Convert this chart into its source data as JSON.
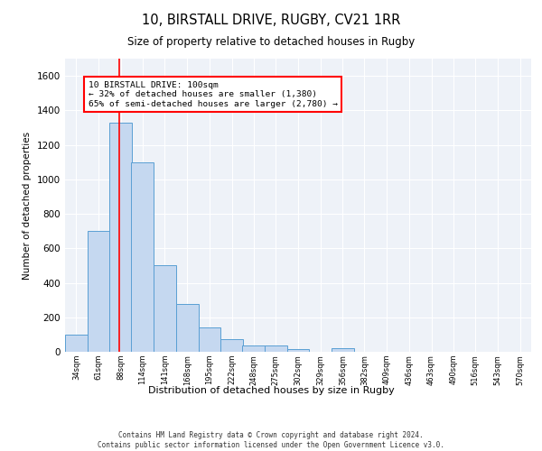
{
  "title": "10, BIRSTALL DRIVE, RUGBY, CV21 1RR",
  "subtitle": "Size of property relative to detached houses in Rugby",
  "xlabel": "Distribution of detached houses by size in Rugby",
  "ylabel": "Number of detached properties",
  "bar_color": "#c5d8f0",
  "bar_edge_color": "#5a9fd4",
  "bins": [
    34,
    61,
    88,
    114,
    141,
    168,
    195,
    222,
    248,
    275,
    302,
    329,
    356,
    382,
    409,
    436,
    463,
    490,
    516,
    543,
    570
  ],
  "values": [
    100,
    700,
    1330,
    1100,
    500,
    275,
    140,
    75,
    35,
    35,
    15,
    0,
    20,
    0,
    0,
    0,
    0,
    0,
    0,
    0
  ],
  "red_line_x": 100,
  "annotation_text": "10 BIRSTALL DRIVE: 100sqm\n← 32% of detached houses are smaller (1,380)\n65% of semi-detached houses are larger (2,780) →",
  "annotation_box_color": "#ffffff",
  "annotation_border_color": "red",
  "ylim": [
    0,
    1700
  ],
  "yticks": [
    0,
    200,
    400,
    600,
    800,
    1000,
    1200,
    1400,
    1600
  ],
  "footer_text": "Contains HM Land Registry data © Crown copyright and database right 2024.\nContains public sector information licensed under the Open Government Licence v3.0.",
  "background_color": "#eef2f8",
  "plot_background_color": "#eef2f8"
}
